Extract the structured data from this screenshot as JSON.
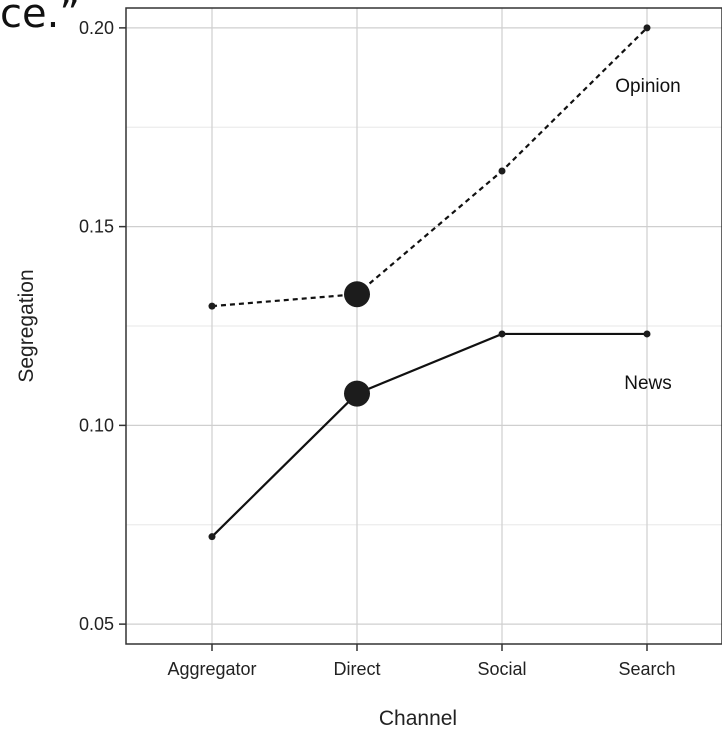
{
  "fragment_text": "ce.”",
  "chart_data": {
    "type": "line",
    "categories": [
      "Aggregator",
      "Direct",
      "Social",
      "Search"
    ],
    "xlabel": "Channel",
    "ylabel": "Segregation",
    "ylim": [
      0.045,
      0.205
    ],
    "yticks": [
      0.05,
      0.1,
      0.15,
      0.2
    ],
    "ytick_labels": [
      "0.05",
      "0.10",
      "0.15",
      "0.20"
    ],
    "grid": true,
    "series": [
      {
        "name": "Opinion",
        "values": [
          0.13,
          0.133,
          0.164,
          0.2
        ],
        "dash": "dotted",
        "large_points": [
          1
        ]
      },
      {
        "name": "News",
        "values": [
          0.072,
          0.108,
          0.123,
          0.123
        ],
        "dash": "solid",
        "large_points": [
          1
        ]
      }
    ],
    "colors": {
      "line": "#111111",
      "grid_major": "#cfcfcf",
      "grid_minor": "#ececec",
      "frame": "#333333"
    }
  }
}
